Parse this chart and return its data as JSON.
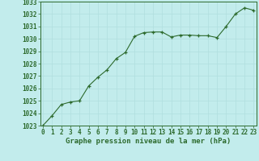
{
  "x": [
    0,
    1,
    2,
    3,
    4,
    5,
    6,
    7,
    8,
    9,
    10,
    11,
    12,
    13,
    14,
    15,
    16,
    17,
    18,
    19,
    20,
    21,
    22,
    23
  ],
  "y": [
    1023.0,
    1023.8,
    1024.7,
    1024.9,
    1025.0,
    1026.2,
    1026.9,
    1027.5,
    1028.4,
    1028.9,
    1030.2,
    1030.5,
    1030.55,
    1030.55,
    1030.15,
    1030.3,
    1030.3,
    1030.25,
    1030.25,
    1030.1,
    1031.0,
    1032.0,
    1032.5,
    1032.3
  ],
  "ylim": [
    1023,
    1033
  ],
  "xlim_min": -0.3,
  "xlim_max": 23.3,
  "yticks": [
    1023,
    1024,
    1025,
    1026,
    1027,
    1028,
    1029,
    1030,
    1031,
    1032,
    1033
  ],
  "xticks": [
    0,
    1,
    2,
    3,
    4,
    5,
    6,
    7,
    8,
    9,
    10,
    11,
    12,
    13,
    14,
    15,
    16,
    17,
    18,
    19,
    20,
    21,
    22,
    23
  ],
  "line_color": "#2d6a2d",
  "marker_color": "#2d6a2d",
  "bg_color": "#c2ecec",
  "grid_color": "#b0dede",
  "xlabel": "Graphe pression niveau de la mer (hPa)",
  "xlabel_color": "#2d6a2d",
  "tick_color": "#2d6a2d",
  "label_fontsize": 5.5,
  "xlabel_fontsize": 6.5
}
